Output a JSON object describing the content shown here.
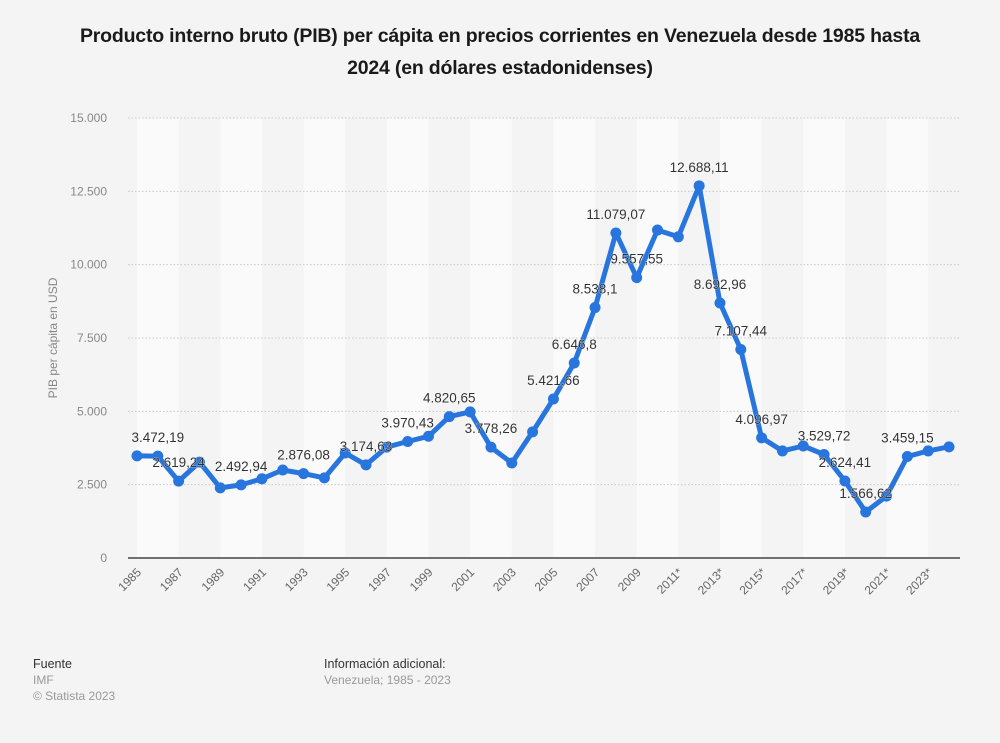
{
  "title": "Producto interno bruto (PIB) per cápita en precios corrientes en Venezuela desde 1985 hasta 2024 (en dólares estadonidenses)",
  "chart_data": {
    "type": "line",
    "title": "Producto interno bruto (PIB) per cápita en precios corrientes en Venezuela desde 1985 hasta 2024 (en dólares estadonidenses)",
    "xlabel": "",
    "ylabel": "PIB per cápita en USD",
    "ylim": [
      0,
      15000
    ],
    "yticks": [
      0,
      2500,
      5000,
      7500,
      10000,
      12500,
      15000
    ],
    "ytick_labels": [
      "0",
      "2.500",
      "5.000",
      "7.500",
      "10.000",
      "12.500",
      "15.000"
    ],
    "grid": true,
    "x": [
      "1985",
      "1986",
      "1987",
      "1988",
      "1989",
      "1990",
      "1991",
      "1992",
      "1993",
      "1994",
      "1995",
      "1996",
      "1997",
      "1998",
      "1999",
      "2000",
      "2001",
      "2002",
      "2003",
      "2004",
      "2005",
      "2006",
      "2007",
      "2008",
      "2009",
      "2010",
      "2011*",
      "2012*",
      "2013*",
      "2014*",
      "2015*",
      "2016*",
      "2017*",
      "2018*",
      "2019*",
      "2020*",
      "2021*",
      "2022*",
      "2023*",
      "2024*"
    ],
    "xtick_labels": [
      "1985",
      "1987",
      "1989",
      "1991",
      "1993",
      "1995",
      "1997",
      "1999",
      "2001",
      "2003",
      "2005",
      "2007",
      "2009",
      "2011*",
      "2013*",
      "2015*",
      "2017*",
      "2019*",
      "2021*",
      "2023*"
    ],
    "series": [
      {
        "name": "PIB per cápita",
        "color": "#2876dd",
        "values": [
          3480,
          3472.19,
          2619.24,
          3270,
          2390,
          2492.94,
          2700,
          3000,
          2876.08,
          2730,
          3580,
          3174.63,
          3780,
          3970.43,
          4150,
          4820.65,
          4980,
          3778.26,
          3240,
          4300,
          5421.66,
          6646.8,
          8538.1,
          11079.07,
          9557.55,
          11180,
          10950,
          12688.11,
          8692.96,
          7107.44,
          4096.97,
          3650,
          3818,
          3529.72,
          2624.41,
          1566.62,
          2110,
          3459.15,
          3650,
          3790
        ]
      }
    ],
    "data_labels": [
      {
        "x": "1986",
        "text": "3.472,19"
      },
      {
        "x": "1987",
        "text": "2.619,24"
      },
      {
        "x": "1990",
        "text": "2.492,94"
      },
      {
        "x": "1993",
        "text": "2.876,08"
      },
      {
        "x": "1996",
        "text": "3.174,63"
      },
      {
        "x": "1998",
        "text": "3.970,43"
      },
      {
        "x": "2000",
        "text": "4.820,65"
      },
      {
        "x": "2002",
        "text": "3.778,26"
      },
      {
        "x": "2005",
        "text": "5.421,66"
      },
      {
        "x": "2006",
        "text": "6.646,8"
      },
      {
        "x": "2007",
        "text": "8.538,1"
      },
      {
        "x": "2008",
        "text": "11.079,07"
      },
      {
        "x": "2009",
        "text": "9.557,55"
      },
      {
        "x": "2012*",
        "text": "12.688,11"
      },
      {
        "x": "2013*",
        "text": "8.692,96"
      },
      {
        "x": "2014*",
        "text": "7.107,44"
      },
      {
        "x": "2015*",
        "text": "4.096,97"
      },
      {
        "x": "2018*",
        "text": "3.529,72"
      },
      {
        "x": "2019*",
        "text": "2.624,41"
      },
      {
        "x": "2020*",
        "text": "1.566,62"
      },
      {
        "x": "2022*",
        "text": "3.459,15"
      }
    ]
  },
  "footer": {
    "source_heading": "Fuente",
    "source": "IMF",
    "copyright": "© Statista 2023",
    "info_heading": "Información adicional:",
    "info": "Venezuela; 1985 - 2023"
  }
}
